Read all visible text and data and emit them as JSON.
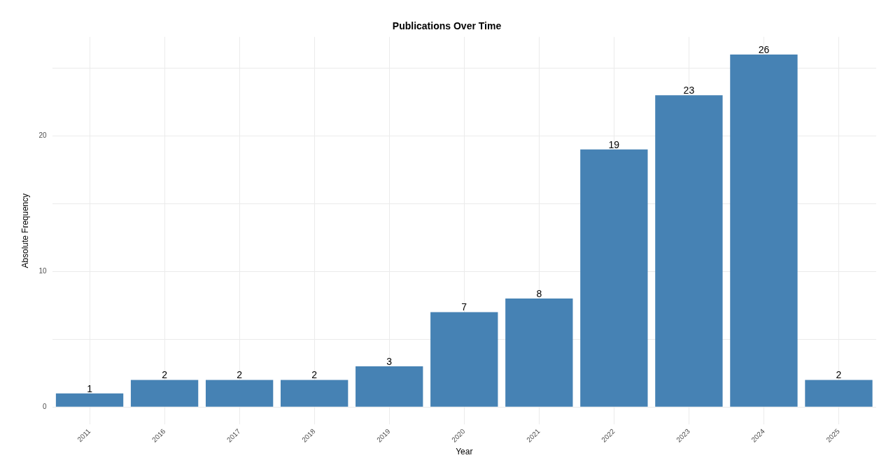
{
  "chart_data": {
    "type": "bar",
    "title": "Publications Over Time",
    "xlabel": "Year",
    "ylabel": "Absolute Frequency",
    "categories": [
      "2011",
      "2016",
      "2017",
      "2018",
      "2019",
      "2020",
      "2021",
      "2022",
      "2023",
      "2024",
      "2025"
    ],
    "values": [
      1,
      2,
      2,
      2,
      3,
      7,
      8,
      19,
      23,
      26,
      2
    ],
    "color": "#4682b4",
    "ylim": [
      -1.3,
      27.3
    ],
    "yticks": [
      0,
      {
        "value": 5,
        "label": null
      },
      10,
      {
        "value": 15,
        "label": null
      },
      20,
      {
        "value": 25,
        "label": null
      }
    ],
    "grid": true,
    "legend": false,
    "data_labels": true
  }
}
